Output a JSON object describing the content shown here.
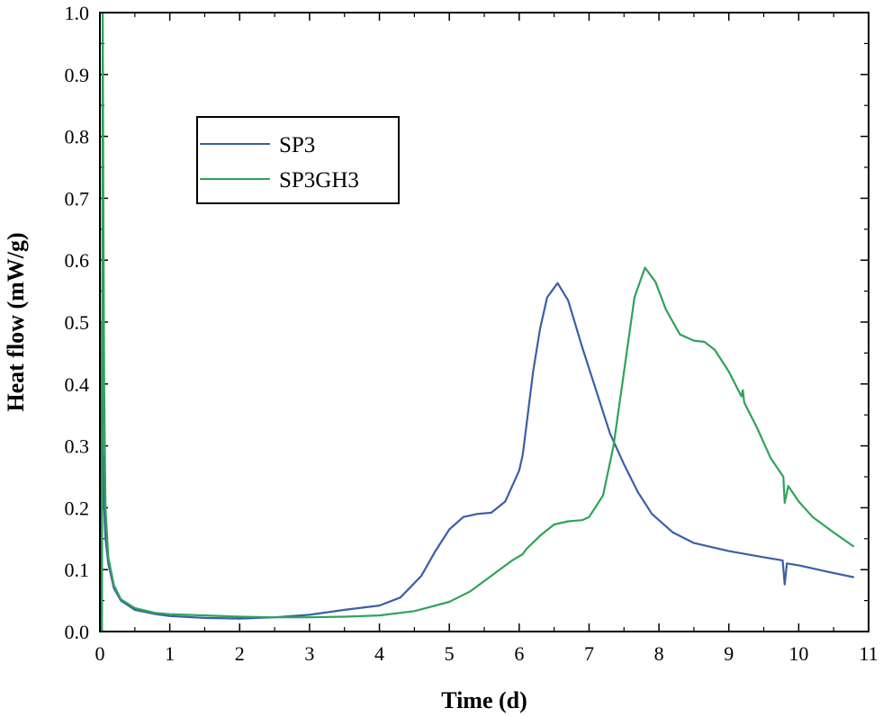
{
  "chart_data": {
    "type": "line",
    "title": "",
    "xlabel": "Time (d)",
    "ylabel": "Heat flow (mW/g)",
    "xlim": [
      0,
      11
    ],
    "ylim": [
      0.0,
      1.0
    ],
    "x_ticks": [
      0,
      1,
      2,
      3,
      4,
      5,
      6,
      7,
      8,
      9,
      10,
      11
    ],
    "y_ticks": [
      0.0,
      0.1,
      0.2,
      0.3,
      0.4,
      0.5,
      0.6,
      0.7,
      0.8,
      0.9,
      1.0
    ],
    "x_tick_labels": [
      "0",
      "1",
      "2",
      "3",
      "4",
      "5",
      "6",
      "7",
      "8",
      "9",
      "10",
      "11"
    ],
    "y_tick_labels": [
      "0.0",
      "0.1",
      "0.2",
      "0.3",
      "0.4",
      "0.5",
      "0.6",
      "0.7",
      "0.8",
      "0.9",
      "1.0"
    ],
    "legend_position": "upper-left",
    "series": [
      {
        "name": "SP3",
        "color": "#3a5fa8",
        "points": [
          [
            0.02,
            0.0
          ],
          [
            0.03,
            0.5
          ],
          [
            0.04,
            0.3
          ],
          [
            0.06,
            0.2
          ],
          [
            0.08,
            0.15
          ],
          [
            0.12,
            0.11
          ],
          [
            0.2,
            0.07
          ],
          [
            0.3,
            0.05
          ],
          [
            0.5,
            0.035
          ],
          [
            0.8,
            0.028
          ],
          [
            1.0,
            0.025
          ],
          [
            1.5,
            0.022
          ],
          [
            2.0,
            0.021
          ],
          [
            2.5,
            0.023
          ],
          [
            3.0,
            0.027
          ],
          [
            3.5,
            0.035
          ],
          [
            4.0,
            0.042
          ],
          [
            4.3,
            0.055
          ],
          [
            4.6,
            0.09
          ],
          [
            4.8,
            0.13
          ],
          [
            5.0,
            0.165
          ],
          [
            5.2,
            0.185
          ],
          [
            5.4,
            0.19
          ],
          [
            5.6,
            0.192
          ],
          [
            5.8,
            0.21
          ],
          [
            6.0,
            0.26
          ],
          [
            6.05,
            0.285
          ],
          [
            6.1,
            0.33
          ],
          [
            6.2,
            0.42
          ],
          [
            6.3,
            0.49
          ],
          [
            6.4,
            0.54
          ],
          [
            6.55,
            0.563
          ],
          [
            6.7,
            0.535
          ],
          [
            6.9,
            0.46
          ],
          [
            7.1,
            0.39
          ],
          [
            7.3,
            0.32
          ],
          [
            7.5,
            0.27
          ],
          [
            7.7,
            0.225
          ],
          [
            7.9,
            0.19
          ],
          [
            8.2,
            0.16
          ],
          [
            8.5,
            0.143
          ],
          [
            9.0,
            0.13
          ],
          [
            9.5,
            0.12
          ],
          [
            9.77,
            0.115
          ],
          [
            9.8,
            0.076
          ],
          [
            9.83,
            0.11
          ],
          [
            10.0,
            0.107
          ],
          [
            10.4,
            0.097
          ],
          [
            10.78,
            0.088
          ]
        ]
      },
      {
        "name": "SP3GH3",
        "color": "#2fa35a",
        "points": [
          [
            0.03,
            0.0
          ],
          [
            0.04,
            1.0
          ],
          [
            0.05,
            0.65
          ],
          [
            0.06,
            0.4
          ],
          [
            0.08,
            0.2
          ],
          [
            0.12,
            0.12
          ],
          [
            0.2,
            0.075
          ],
          [
            0.3,
            0.052
          ],
          [
            0.5,
            0.038
          ],
          [
            0.8,
            0.03
          ],
          [
            1.0,
            0.028
          ],
          [
            1.5,
            0.026
          ],
          [
            2.0,
            0.024
          ],
          [
            2.5,
            0.023
          ],
          [
            3.0,
            0.023
          ],
          [
            3.5,
            0.024
          ],
          [
            4.0,
            0.026
          ],
          [
            4.5,
            0.033
          ],
          [
            5.0,
            0.048
          ],
          [
            5.3,
            0.065
          ],
          [
            5.6,
            0.09
          ],
          [
            5.9,
            0.115
          ],
          [
            6.05,
            0.125
          ],
          [
            6.1,
            0.133
          ],
          [
            6.3,
            0.155
          ],
          [
            6.5,
            0.173
          ],
          [
            6.7,
            0.178
          ],
          [
            6.9,
            0.18
          ],
          [
            7.0,
            0.185
          ],
          [
            7.2,
            0.22
          ],
          [
            7.35,
            0.3
          ],
          [
            7.5,
            0.42
          ],
          [
            7.65,
            0.54
          ],
          [
            7.8,
            0.588
          ],
          [
            7.95,
            0.565
          ],
          [
            8.1,
            0.52
          ],
          [
            8.3,
            0.48
          ],
          [
            8.5,
            0.47
          ],
          [
            8.65,
            0.468
          ],
          [
            8.8,
            0.455
          ],
          [
            9.0,
            0.42
          ],
          [
            9.18,
            0.38
          ],
          [
            9.2,
            0.39
          ],
          [
            9.22,
            0.37
          ],
          [
            9.4,
            0.33
          ],
          [
            9.6,
            0.28
          ],
          [
            9.78,
            0.25
          ],
          [
            9.8,
            0.208
          ],
          [
            9.85,
            0.235
          ],
          [
            10.0,
            0.21
          ],
          [
            10.2,
            0.185
          ],
          [
            10.5,
            0.16
          ],
          [
            10.78,
            0.138
          ]
        ]
      }
    ]
  }
}
